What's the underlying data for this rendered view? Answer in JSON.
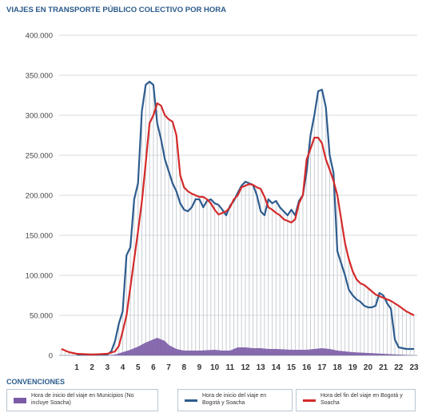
{
  "title": "VIAJES EN TRANSPORTE PÚBLICO COLECTIVO POR HORA",
  "conventions_title": "CONVENCIONES",
  "legend": [
    {
      "label": "Hora de inicio del viaje en Municipios (No incluye Soacha)",
      "color": "#7b5ba6"
    },
    {
      "label": "Hora de inicio del viaje en Bogotá y Soacha",
      "color": "#2e5c8e"
    },
    {
      "label": "Hora del fin del viaje en Bogotá y Soacha",
      "color": "#d42a2a"
    }
  ],
  "chart_data": {
    "type": "line",
    "x_ticks": [
      "1",
      "2",
      "3",
      "4",
      "5",
      "6",
      "7",
      "8",
      "9",
      "10",
      "11",
      "12",
      "13",
      "14",
      "15",
      "16",
      "17",
      "18",
      "19",
      "20",
      "21",
      "22",
      "23"
    ],
    "y_ticks": [
      "0",
      "50.000",
      "100.000",
      "150.000",
      "200.000",
      "250.000",
      "300.000",
      "350.000",
      "400.000"
    ],
    "ylim": [
      0,
      400000
    ],
    "xlim": [
      0,
      23.5
    ],
    "grid": true,
    "series": [
      {
        "name": "Hora de inicio del viaje en Municipios (No incluye Soacha)",
        "style": "area",
        "color": "#7b5ba6",
        "points": [
          [
            0,
            0
          ],
          [
            3,
            0
          ],
          [
            3.5,
            1000
          ],
          [
            4,
            4000
          ],
          [
            4.5,
            7000
          ],
          [
            5,
            11000
          ],
          [
            5.5,
            16000
          ],
          [
            6,
            20000
          ],
          [
            6.25,
            22000
          ],
          [
            6.5,
            20000
          ],
          [
            6.75,
            18000
          ],
          [
            7,
            13000
          ],
          [
            7.5,
            8000
          ],
          [
            8,
            6000
          ],
          [
            9,
            6000
          ],
          [
            10,
            7000
          ],
          [
            10.5,
            6000
          ],
          [
            11,
            6000
          ],
          [
            11.5,
            10000
          ],
          [
            12,
            10000
          ],
          [
            12.5,
            9000
          ],
          [
            13,
            9000
          ],
          [
            13.5,
            8000
          ],
          [
            14,
            8000
          ],
          [
            15,
            7000
          ],
          [
            16,
            7000
          ],
          [
            16.5,
            8000
          ],
          [
            17,
            9000
          ],
          [
            17.5,
            8000
          ],
          [
            18,
            6000
          ],
          [
            19,
            4000
          ],
          [
            20,
            3000
          ],
          [
            21,
            2000
          ],
          [
            22,
            1000
          ],
          [
            23,
            0
          ],
          [
            23.5,
            0
          ]
        ]
      },
      {
        "name": "Hora de inicio del viaje en Bogotá y Soacha",
        "style": "line",
        "color": "#2e5c8e",
        "points": [
          [
            1,
            1000
          ],
          [
            2,
            1000
          ],
          [
            3,
            1000
          ],
          [
            3.25,
            5000
          ],
          [
            3.5,
            18000
          ],
          [
            3.75,
            40000
          ],
          [
            4,
            55000
          ],
          [
            4.25,
            125000
          ],
          [
            4.5,
            135000
          ],
          [
            4.75,
            195000
          ],
          [
            5,
            215000
          ],
          [
            5.25,
            305000
          ],
          [
            5.5,
            338000
          ],
          [
            5.75,
            342000
          ],
          [
            6,
            338000
          ],
          [
            6.25,
            290000
          ],
          [
            6.5,
            270000
          ],
          [
            6.75,
            245000
          ],
          [
            7,
            230000
          ],
          [
            7.25,
            215000
          ],
          [
            7.5,
            205000
          ],
          [
            7.75,
            190000
          ],
          [
            8,
            182000
          ],
          [
            8.25,
            180000
          ],
          [
            8.5,
            185000
          ],
          [
            8.75,
            195000
          ],
          [
            9,
            195000
          ],
          [
            9.25,
            185000
          ],
          [
            9.5,
            193000
          ],
          [
            9.75,
            195000
          ],
          [
            10,
            190000
          ],
          [
            10.25,
            188000
          ],
          [
            10.5,
            182000
          ],
          [
            10.75,
            175000
          ],
          [
            11,
            187000
          ],
          [
            11.25,
            193000
          ],
          [
            11.5,
            203000
          ],
          [
            11.75,
            212000
          ],
          [
            12,
            217000
          ],
          [
            12.25,
            215000
          ],
          [
            12.5,
            213000
          ],
          [
            12.75,
            200000
          ],
          [
            13,
            180000
          ],
          [
            13.25,
            175000
          ],
          [
            13.5,
            195000
          ],
          [
            13.75,
            190000
          ],
          [
            14,
            193000
          ],
          [
            14.25,
            185000
          ],
          [
            14.5,
            180000
          ],
          [
            14.75,
            175000
          ],
          [
            15,
            182000
          ],
          [
            15.25,
            175000
          ],
          [
            15.5,
            193000
          ],
          [
            15.75,
            200000
          ],
          [
            16,
            230000
          ],
          [
            16.25,
            275000
          ],
          [
            16.5,
            300000
          ],
          [
            16.75,
            330000
          ],
          [
            17,
            332000
          ],
          [
            17.25,
            310000
          ],
          [
            17.5,
            250000
          ],
          [
            17.75,
            228000
          ],
          [
            18,
            130000
          ],
          [
            18.25,
            115000
          ],
          [
            18.5,
            100000
          ],
          [
            18.75,
            82000
          ],
          [
            19,
            75000
          ],
          [
            19.25,
            70000
          ],
          [
            19.5,
            67000
          ],
          [
            19.75,
            62000
          ],
          [
            20,
            60000
          ],
          [
            20.25,
            60000
          ],
          [
            20.5,
            62000
          ],
          [
            20.75,
            78000
          ],
          [
            21,
            75000
          ],
          [
            21.25,
            65000
          ],
          [
            21.5,
            58000
          ],
          [
            21.75,
            20000
          ],
          [
            22,
            10000
          ],
          [
            22.5,
            8000
          ],
          [
            23,
            8000
          ]
        ]
      },
      {
        "name": "Hora del fin del viaje en Bogotá y Soacha",
        "style": "line",
        "color": "#d42a2a",
        "points": [
          [
            0,
            8000
          ],
          [
            0.5,
            4000
          ],
          [
            1,
            2000
          ],
          [
            2,
            1000
          ],
          [
            3,
            2000
          ],
          [
            3.5,
            5000
          ],
          [
            3.75,
            12000
          ],
          [
            4,
            30000
          ],
          [
            4.25,
            50000
          ],
          [
            4.5,
            85000
          ],
          [
            4.75,
            120000
          ],
          [
            5,
            155000
          ],
          [
            5.25,
            192000
          ],
          [
            5.5,
            240000
          ],
          [
            5.75,
            290000
          ],
          [
            6,
            300000
          ],
          [
            6.25,
            315000
          ],
          [
            6.5,
            312000
          ],
          [
            6.75,
            300000
          ],
          [
            7,
            295000
          ],
          [
            7.25,
            292000
          ],
          [
            7.5,
            275000
          ],
          [
            7.75,
            225000
          ],
          [
            8,
            210000
          ],
          [
            8.25,
            205000
          ],
          [
            8.5,
            202000
          ],
          [
            8.75,
            200000
          ],
          [
            9,
            198000
          ],
          [
            9.25,
            198000
          ],
          [
            9.5,
            195000
          ],
          [
            9.75,
            190000
          ],
          [
            10,
            182000
          ],
          [
            10.25,
            176000
          ],
          [
            10.5,
            178000
          ],
          [
            10.75,
            180000
          ],
          [
            11,
            185000
          ],
          [
            11.25,
            195000
          ],
          [
            11.5,
            200000
          ],
          [
            11.75,
            210000
          ],
          [
            12,
            212000
          ],
          [
            12.25,
            214000
          ],
          [
            12.5,
            213000
          ],
          [
            12.75,
            210000
          ],
          [
            13,
            208000
          ],
          [
            13.25,
            198000
          ],
          [
            13.5,
            185000
          ],
          [
            13.75,
            182000
          ],
          [
            14,
            178000
          ],
          [
            14.25,
            175000
          ],
          [
            14.5,
            170000
          ],
          [
            14.75,
            168000
          ],
          [
            15,
            166000
          ],
          [
            15.25,
            170000
          ],
          [
            15.5,
            190000
          ],
          [
            15.75,
            200000
          ],
          [
            16,
            245000
          ],
          [
            16.25,
            258000
          ],
          [
            16.5,
            272000
          ],
          [
            16.75,
            272000
          ],
          [
            17,
            265000
          ],
          [
            17.25,
            245000
          ],
          [
            17.5,
            232000
          ],
          [
            17.75,
            218000
          ],
          [
            18,
            200000
          ],
          [
            18.25,
            170000
          ],
          [
            18.5,
            140000
          ],
          [
            18.75,
            120000
          ],
          [
            19,
            105000
          ],
          [
            19.25,
            95000
          ],
          [
            19.5,
            90000
          ],
          [
            19.75,
            88000
          ],
          [
            20,
            84000
          ],
          [
            20.25,
            80000
          ],
          [
            20.5,
            76000
          ],
          [
            20.75,
            74000
          ],
          [
            21,
            72000
          ],
          [
            21.25,
            70000
          ],
          [
            21.5,
            68000
          ],
          [
            21.75,
            65000
          ],
          [
            22,
            62000
          ],
          [
            22.5,
            55000
          ],
          [
            23,
            50000
          ]
        ]
      }
    ]
  }
}
